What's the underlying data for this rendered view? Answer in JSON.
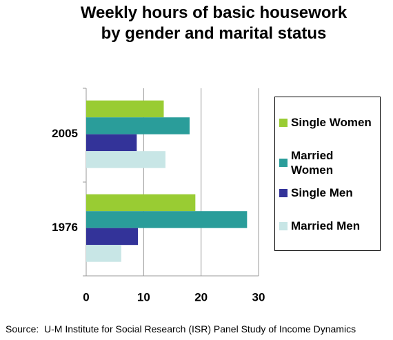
{
  "chart_data": {
    "type": "hbar",
    "title": "Weekly hours of basic housework by gender and marital status",
    "source": "Source:  U-M Institute for Social Research (ISR) Panel Study of Income Dynamics",
    "categories": [
      "2005",
      "1976"
    ],
    "series": [
      {
        "name": "Single Women",
        "color": "#99cc33",
        "values": [
          13.5,
          19
        ]
      },
      {
        "name": "Married Women",
        "color": "#2a9d9a",
        "values": [
          18,
          28
        ]
      },
      {
        "name": "Single Men",
        "color": "#333399",
        "values": [
          8.8,
          9
        ]
      },
      {
        "name": "Married Men",
        "color": "#c8e6e6",
        "values": [
          13.8,
          6.1
        ]
      }
    ],
    "xlim": [
      0,
      30
    ],
    "xticks": [
      0,
      10,
      20,
      30
    ],
    "grid": true,
    "legend": "right"
  }
}
